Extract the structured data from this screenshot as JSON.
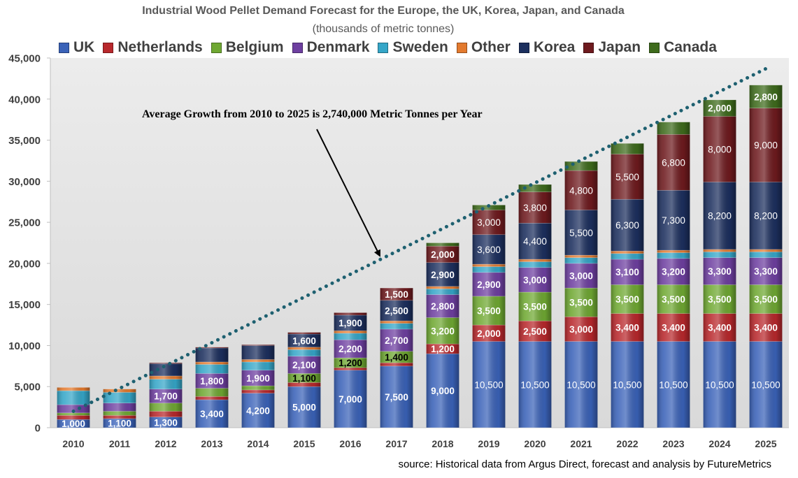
{
  "chart_data": {
    "type": "bar",
    "stacked": true,
    "title": "Industrial Wood Pellet Demand Forecast for the Europe, the UK, Korea, Japan, and Canada",
    "subtitle": "(thousands of metric tonnes)",
    "annotation": "Average Growth from 2010 to 2025 is 2,740,000 Metric Tonnes per Year",
    "source": "source: Historical data from Argus Direct, forecast and analysis by FutureMetrics",
    "ylim": [
      0,
      45000
    ],
    "yticks": [
      "0",
      "5,000",
      "10,000",
      "15,000",
      "20,000",
      "25,000",
      "30,000",
      "35,000",
      "40,000",
      "45,000"
    ],
    "legend_position": "top",
    "grid": false,
    "categories": [
      "2010",
      "2011",
      "2012",
      "2013",
      "2014",
      "2015",
      "2016",
      "2017",
      "2018",
      "2019",
      "2020",
      "2021",
      "2022",
      "2023",
      "2024",
      "2025"
    ],
    "series": [
      {
        "name": "UK",
        "color": "#3A62B8",
        "values": [
          1000,
          1100,
          1300,
          3400,
          4200,
          5000,
          7000,
          7500,
          9000,
          10500,
          10500,
          10500,
          10500,
          10500,
          10500,
          10500
        ],
        "labels": [
          "1,000",
          "1,100",
          "1,300",
          "3,400",
          "4,200",
          "5,000",
          "7,000",
          "7,500",
          "9,000",
          "10,500",
          "10,500",
          "10,500",
          "10,500",
          "10,500",
          "10,500",
          "10,500"
        ]
      },
      {
        "name": "Netherlands",
        "color": "#B8282C",
        "values": [
          500,
          400,
          700,
          400,
          400,
          500,
          300,
          400,
          1200,
          2000,
          2500,
          3000,
          3400,
          3400,
          3400,
          3400
        ],
        "labels": [
          "",
          "",
          "",
          "",
          "",
          "",
          "",
          "",
          "1,200",
          "2,000",
          "2,500",
          "3,000",
          "3,400",
          "3,400",
          "3,400",
          "3,400"
        ]
      },
      {
        "name": "Belgium",
        "color": "#6FA832",
        "values": [
          300,
          500,
          1000,
          1000,
          500,
          1100,
          1200,
          1400,
          3200,
          3500,
          3500,
          3500,
          3500,
          3500,
          3500,
          3500
        ],
        "labels": [
          "",
          "",
          "",
          "",
          "",
          "1,100",
          "1,200",
          "1,400",
          "3,200",
          "3,500",
          "3,500",
          "3,500",
          "3,500",
          "3,500",
          "3,500",
          "3,500"
        ]
      },
      {
        "name": "Denmark",
        "color": "#6E3FA0",
        "values": [
          1000,
          1000,
          1700,
          1800,
          1900,
          2100,
          2200,
          2700,
          2800,
          2900,
          3000,
          3000,
          3100,
          3200,
          3300,
          3300
        ],
        "labels": [
          "",
          "",
          "1,700",
          "1,800",
          "1,900",
          "2,100",
          "2,200",
          "2,700",
          "2,800",
          "2,900",
          "3,000",
          "3,000",
          "3,100",
          "3,200",
          "3,300",
          "3,300"
        ]
      },
      {
        "name": "Sweden",
        "color": "#35A6C8",
        "values": [
          1700,
          1300,
          1200,
          1100,
          1000,
          800,
          800,
          700,
          700,
          700,
          700,
          700,
          700,
          700,
          700,
          700
        ],
        "labels": [
          "",
          "",
          "",
          "",
          "",
          "",
          "",
          "",
          "",
          "",
          "",
          "",
          "",
          "",
          "",
          ""
        ]
      },
      {
        "name": "Other",
        "color": "#E37A2E",
        "values": [
          400,
          400,
          400,
          300,
          300,
          300,
          300,
          300,
          300,
          300,
          300,
          300,
          300,
          300,
          300,
          300
        ],
        "labels": [
          "",
          "",
          "",
          "",
          "",
          "",
          "",
          "",
          "",
          "",
          "",
          "",
          "",
          "",
          "",
          ""
        ]
      },
      {
        "name": "Korea",
        "color": "#1C2F5E",
        "values": [
          0,
          0,
          1500,
          1700,
          1700,
          1600,
          1900,
          2500,
          2900,
          3600,
          4400,
          5500,
          6300,
          7300,
          8200,
          8200
        ],
        "labels": [
          "",
          "",
          "",
          "",
          "",
          "1,600",
          "1,900",
          "2,500",
          "2,900",
          "3,600",
          "4,400",
          "5,500",
          "6,300",
          "7,300",
          "8,200",
          "8,200"
        ]
      },
      {
        "name": "Japan",
        "color": "#6E1A1E",
        "values": [
          0,
          0,
          100,
          100,
          100,
          200,
          300,
          1500,
          2000,
          3000,
          3800,
          4800,
          5500,
          6800,
          8000,
          9000
        ],
        "labels": [
          "",
          "",
          "",
          "",
          "",
          "",
          "",
          "1,500",
          "2,000",
          "3,000",
          "3,800",
          "4,800",
          "5,500",
          "6,800",
          "8,000",
          "9,000"
        ]
      },
      {
        "name": "Canada",
        "color": "#3E6B1C",
        "values": [
          0,
          0,
          0,
          0,
          0,
          0,
          0,
          0,
          400,
          600,
          900,
          1100,
          1300,
          1500,
          2000,
          2800
        ],
        "labels": [
          "",
          "",
          "",
          "",
          "",
          "",
          "",
          "",
          "",
          "",
          "",
          "",
          "",
          "",
          "2,000",
          "2,800"
        ]
      }
    ],
    "trendline": {
      "x_start": "2010",
      "y_start": 2000,
      "x_end": "2025",
      "y_end": 43700
    }
  }
}
